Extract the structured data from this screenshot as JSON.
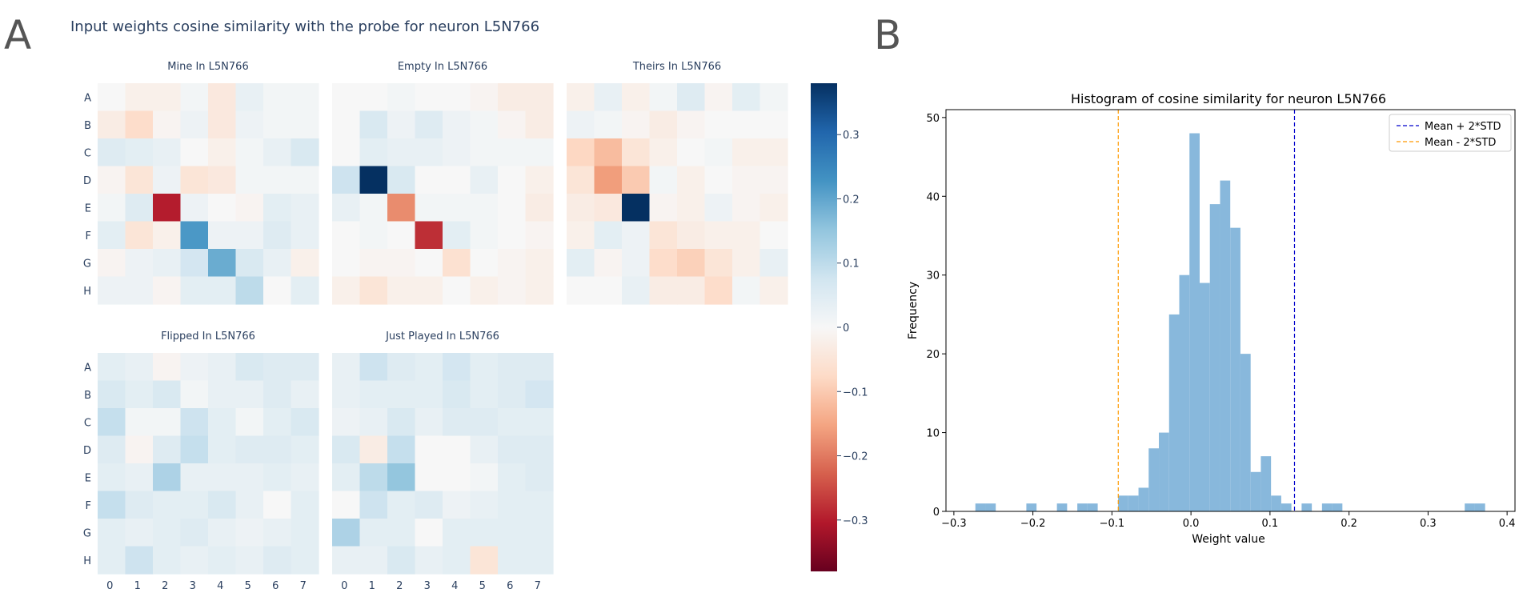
{
  "panel_labels": {
    "a": "A",
    "b": "B"
  },
  "chart_data": [
    {
      "type": "heatmap",
      "title": "Input weights cosine similarity with the probe for neuron L5N766",
      "row_labels": [
        "A",
        "B",
        "C",
        "D",
        "E",
        "F",
        "G",
        "H"
      ],
      "col_labels": [
        "0",
        "1",
        "2",
        "3",
        "4",
        "5",
        "6",
        "7"
      ],
      "colorscale": "RdBu",
      "zmin": -0.38,
      "zmax": 0.38,
      "colorbar": {
        "tickvals": [
          0.3,
          0.2,
          0.1,
          0,
          -0.1,
          -0.2,
          -0.3
        ],
        "ticktext": [
          "0.3",
          "0.2",
          "0.1",
          "0",
          "−0.1",
          "−0.2",
          "−0.3"
        ]
      },
      "subplots": [
        {
          "title": "Mine In L5N766",
          "z": [
            [
              0.0,
              -0.02,
              -0.02,
              0.01,
              -0.04,
              0.03,
              0.01,
              0.01
            ],
            [
              -0.03,
              -0.07,
              -0.01,
              0.02,
              -0.04,
              0.02,
              0.01,
              0.01
            ],
            [
              0.05,
              0.04,
              0.03,
              0.0,
              -0.02,
              0.01,
              0.03,
              0.06
            ],
            [
              -0.01,
              -0.05,
              0.02,
              -0.05,
              -0.04,
              0.01,
              0.01,
              0.01
            ],
            [
              0.01,
              0.05,
              -0.3,
              0.02,
              0.0,
              -0.01,
              0.04,
              0.03
            ],
            [
              0.04,
              -0.05,
              -0.02,
              0.22,
              0.02,
              0.02,
              0.05,
              0.03
            ],
            [
              -0.01,
              0.02,
              0.03,
              0.07,
              0.19,
              0.06,
              0.03,
              -0.02
            ],
            [
              0.02,
              0.02,
              -0.01,
              0.04,
              0.04,
              0.1,
              0.0,
              0.04
            ]
          ]
        },
        {
          "title": "Empty In L5N766",
          "z": [
            [
              0.0,
              0.0,
              0.01,
              0.0,
              0.0,
              -0.01,
              -0.03,
              -0.03
            ],
            [
              0.0,
              0.06,
              0.02,
              0.05,
              0.02,
              0.01,
              -0.01,
              -0.03
            ],
            [
              0.0,
              0.04,
              0.03,
              0.03,
              0.02,
              0.01,
              0.01,
              0.01
            ],
            [
              0.08,
              0.38,
              0.06,
              0.0,
              0.0,
              0.03,
              0.0,
              -0.02
            ],
            [
              0.03,
              0.01,
              -0.18,
              0.01,
              0.01,
              0.01,
              0.0,
              -0.03
            ],
            [
              0.0,
              0.01,
              0.0,
              -0.28,
              0.04,
              0.01,
              0.0,
              -0.01
            ],
            [
              0.0,
              -0.01,
              -0.01,
              0.0,
              -0.06,
              0.0,
              -0.01,
              -0.02
            ],
            [
              -0.02,
              -0.05,
              -0.02,
              -0.02,
              0.0,
              -0.02,
              -0.01,
              -0.02
            ]
          ]
        },
        {
          "title": "Theirs In L5N766",
          "z": [
            [
              -0.02,
              0.03,
              -0.02,
              0.01,
              0.05,
              -0.01,
              0.04,
              0.01
            ],
            [
              0.02,
              0.01,
              -0.01,
              -0.03,
              -0.01,
              0.0,
              0.0,
              0.0
            ],
            [
              -0.08,
              -0.12,
              -0.05,
              -0.02,
              0.0,
              0.01,
              -0.02,
              -0.02
            ],
            [
              -0.05,
              -0.16,
              -0.1,
              0.01,
              -0.02,
              0.0,
              -0.01,
              -0.01
            ],
            [
              -0.03,
              -0.04,
              0.38,
              -0.01,
              -0.02,
              0.02,
              -0.01,
              -0.02
            ],
            [
              -0.02,
              0.04,
              0.02,
              -0.05,
              -0.03,
              -0.02,
              -0.02,
              0.0
            ],
            [
              0.04,
              -0.01,
              0.02,
              -0.07,
              -0.09,
              -0.05,
              -0.02,
              0.03
            ],
            [
              0.0,
              0.0,
              0.03,
              -0.03,
              -0.03,
              -0.07,
              0.01,
              -0.02
            ]
          ]
        },
        {
          "title": "Flipped In L5N766",
          "z": [
            [
              0.04,
              0.03,
              -0.01,
              0.02,
              0.03,
              0.06,
              0.05,
              0.05
            ],
            [
              0.06,
              0.04,
              0.06,
              0.01,
              0.03,
              0.03,
              0.05,
              0.03
            ],
            [
              0.09,
              0.01,
              0.01,
              0.08,
              0.04,
              0.01,
              0.04,
              0.06
            ],
            [
              0.05,
              -0.01,
              0.05,
              0.09,
              0.04,
              0.05,
              0.05,
              0.04
            ],
            [
              0.04,
              0.03,
              0.12,
              0.03,
              0.03,
              0.03,
              0.04,
              0.03
            ],
            [
              0.09,
              0.05,
              0.04,
              0.04,
              0.06,
              0.03,
              0.0,
              0.04
            ],
            [
              0.04,
              0.03,
              0.04,
              0.05,
              0.03,
              0.02,
              0.03,
              0.04
            ],
            [
              0.04,
              0.08,
              0.04,
              0.03,
              0.04,
              0.03,
              0.05,
              0.04
            ]
          ]
        },
        {
          "title": "Just Played In L5N766",
          "z": [
            [
              0.03,
              0.08,
              0.05,
              0.04,
              0.07,
              0.04,
              0.05,
              0.05
            ],
            [
              0.03,
              0.04,
              0.04,
              0.04,
              0.06,
              0.04,
              0.05,
              0.07
            ],
            [
              0.02,
              0.03,
              0.06,
              0.03,
              0.05,
              0.05,
              0.04,
              0.04
            ],
            [
              0.06,
              -0.03,
              0.09,
              0.0,
              0.0,
              0.03,
              0.05,
              0.05
            ],
            [
              0.04,
              0.1,
              0.15,
              0.0,
              0.0,
              0.01,
              0.04,
              0.05
            ],
            [
              0.0,
              0.08,
              0.04,
              0.05,
              0.02,
              0.03,
              0.04,
              0.04
            ],
            [
              0.12,
              0.04,
              0.04,
              0.0,
              0.04,
              0.04,
              0.04,
              0.04
            ],
            [
              0.03,
              0.03,
              0.06,
              0.03,
              0.04,
              -0.05,
              0.04,
              0.04
            ]
          ]
        }
      ]
    },
    {
      "type": "bar",
      "subtype": "histogram",
      "title": "Histogram of cosine similarity for neuron L5N766",
      "xlabel": "Weight value",
      "ylabel": "Frequency",
      "xlim": [
        -0.31,
        0.41
      ],
      "ylim": [
        0,
        51
      ],
      "xticks": [
        -0.3,
        -0.2,
        -0.1,
        0.0,
        0.1,
        0.2,
        0.3,
        0.4
      ],
      "xtick_labels": [
        "−0.3",
        "−0.2",
        "−0.1",
        "0.0",
        "0.1",
        "0.2",
        "0.3",
        "0.4"
      ],
      "yticks": [
        0,
        10,
        20,
        30,
        40,
        50
      ],
      "ytick_labels": [
        "0",
        "10",
        "20",
        "30",
        "40",
        "50"
      ],
      "bin_start": -0.2728,
      "bin_width": 0.0129,
      "counts": [
        1,
        1,
        0,
        0,
        0,
        1,
        0,
        0,
        1,
        0,
        1,
        1,
        0,
        0,
        2,
        2,
        3,
        8,
        10,
        25,
        30,
        48,
        29,
        39,
        42,
        36,
        20,
        5,
        7,
        2,
        1,
        0,
        1,
        0,
        1,
        1,
        0,
        0,
        0,
        0,
        0,
        0,
        0,
        0,
        0,
        0,
        0,
        0,
        1,
        1
      ],
      "bar_color": "#88b8dc",
      "vlines": [
        {
          "x": 0.131,
          "label": "Mean + 2*STD",
          "color": "#0000cc"
        },
        {
          "x": -0.092,
          "label": "Mean - 2*STD",
          "color": "#ff9900"
        }
      ],
      "legend_position": "top-right"
    }
  ]
}
